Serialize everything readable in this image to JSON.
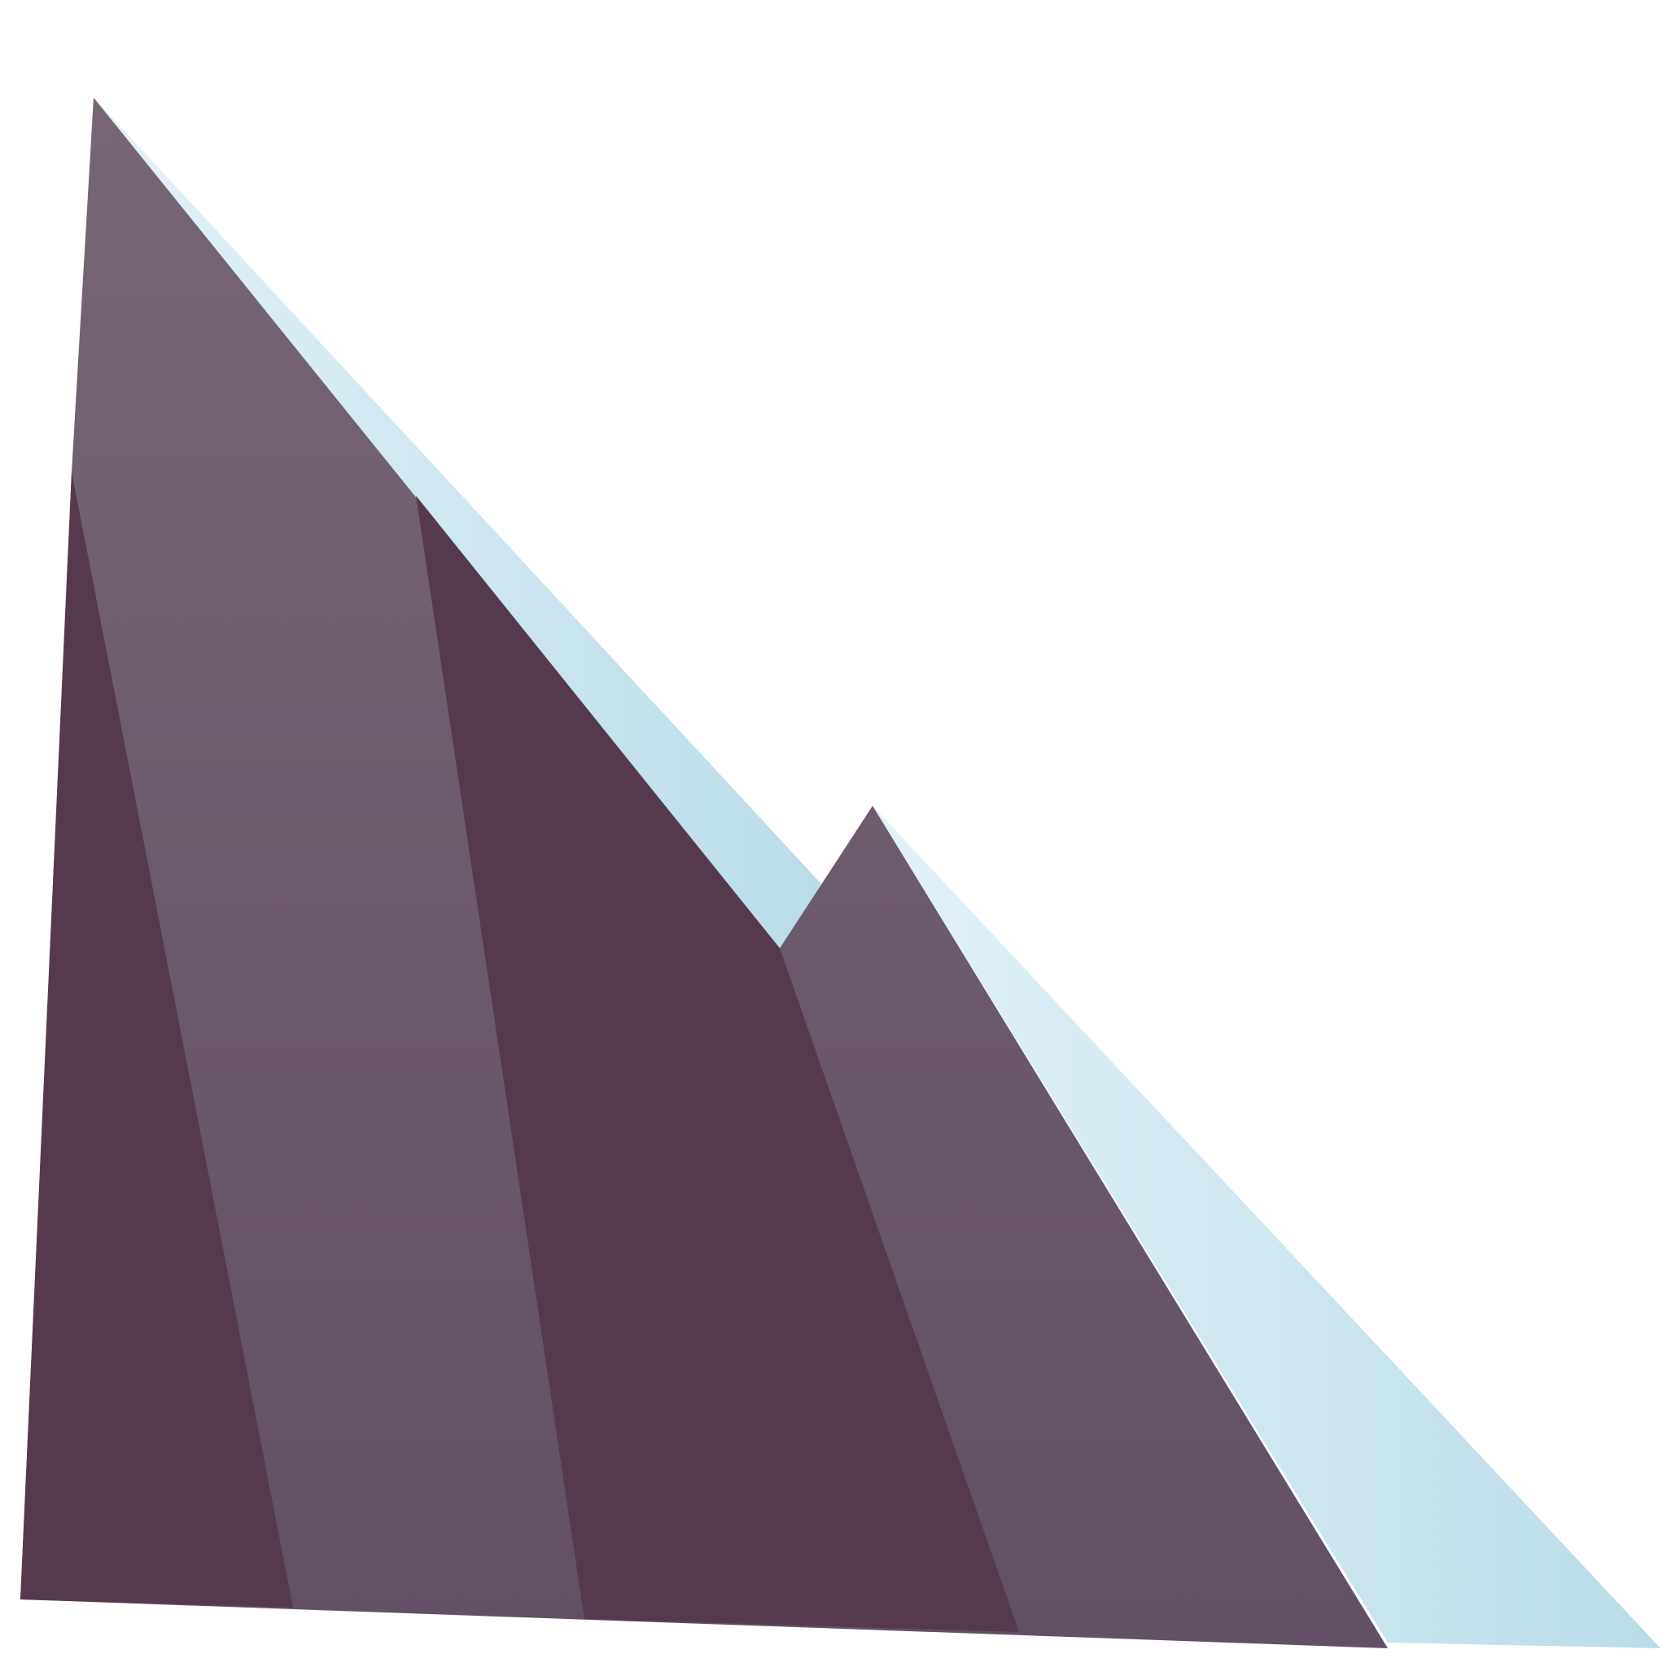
{
  "scene": {
    "subject": "mountain-illustration",
    "colors": {
      "background": "#ffffff",
      "ice_light": "#e4f2f8",
      "ice_dark": "#b9dce8",
      "rock_light_top": "#766674",
      "rock_light_bottom": "#625064",
      "rock_dark": "#553a4e"
    }
  }
}
